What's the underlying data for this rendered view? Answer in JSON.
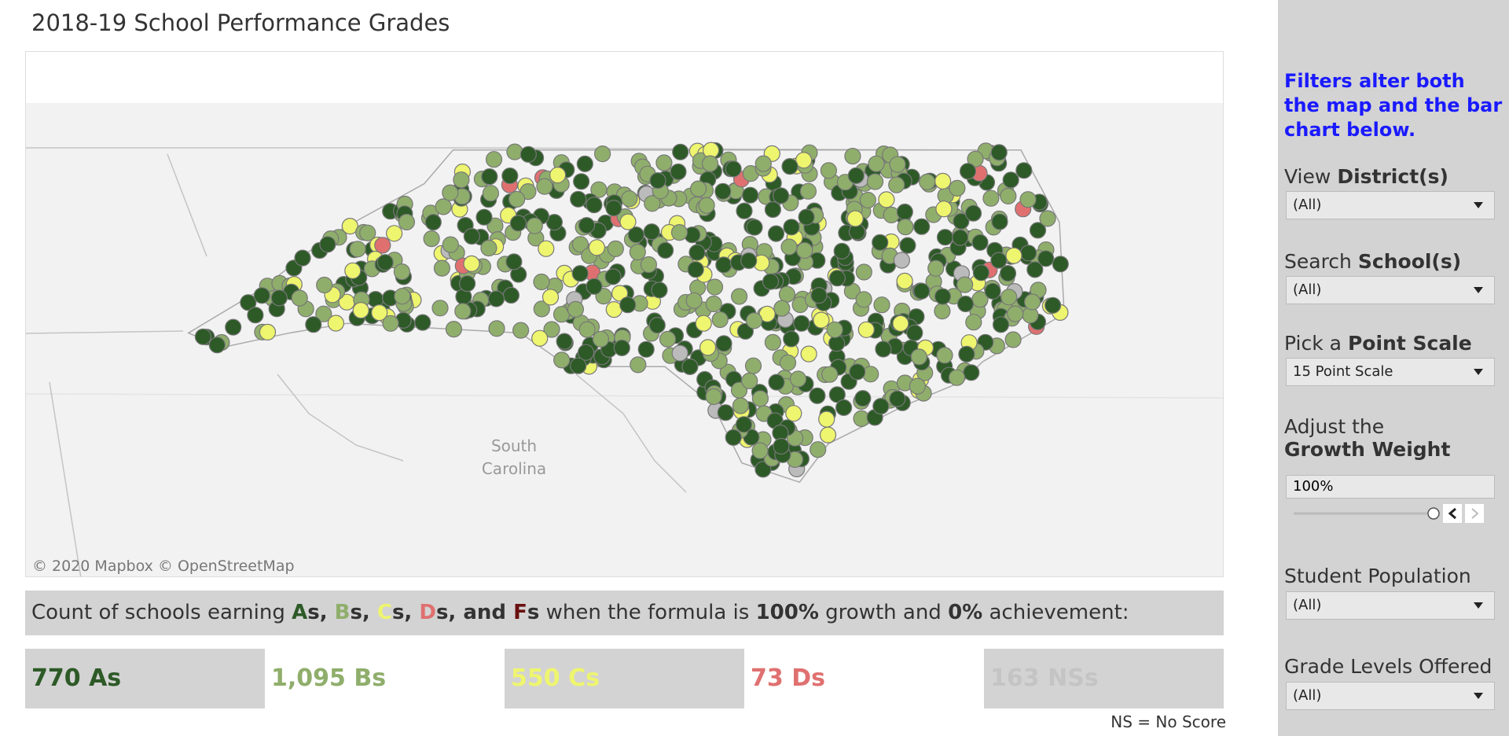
{
  "header": {
    "title": "2018-19 School Performance Grades"
  },
  "map": {
    "labels": [
      "South",
      "Carolina"
    ],
    "attribution": "© 2020 Mapbox © OpenStreetMap"
  },
  "summary": {
    "parts": [
      "Count of schools earning ",
      "A",
      "s, ",
      "B",
      "s, ",
      "C",
      "s, ",
      "D",
      "s, and ",
      "F",
      "s",
      " when the formula is ",
      "100%",
      " growth and ",
      "0%",
      " achievement:"
    ]
  },
  "counts": [
    "770 As",
    "1,095 Bs",
    "550 Cs",
    "73 Ds",
    "163 NSs"
  ],
  "note": "NS = No Score",
  "sidebar": {
    "notice": "Filters alter both the map and the bar chart below.",
    "filters": [
      {
        "label": "View",
        "bold": "District(s)",
        "value": "(All)"
      },
      {
        "label": "Search",
        "bold": "School(s)",
        "value": "(All)"
      },
      {
        "label": "Pick a",
        "bold": "Point Scale",
        "value": "15 Point Scale"
      },
      {
        "label": "Adjust the",
        "bold": "Growth Weight",
        "value": "100%"
      },
      {
        "label": "Student Population",
        "value": "(All)"
      },
      {
        "label": "Grade Levels Offered",
        "value": "(All)"
      }
    ]
  }
}
